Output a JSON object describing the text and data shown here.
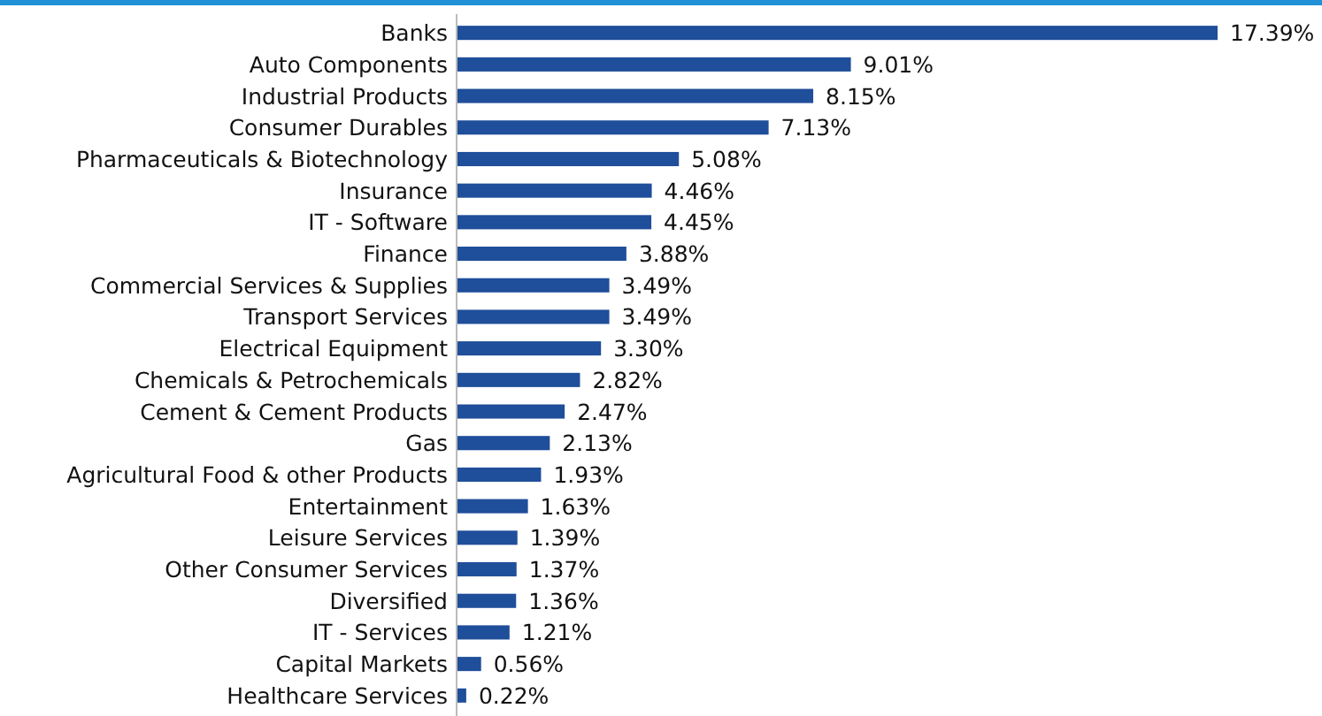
{
  "chart_data": {
    "type": "bar",
    "orientation": "horizontal",
    "color": "#1f4e9a",
    "categories": [
      "Banks",
      "Auto Components",
      "Industrial Products",
      "Consumer Durables",
      "Pharmaceuticals & Biotechnology",
      "Insurance",
      "IT - Software",
      "Finance",
      "Commercial Services & Supplies",
      "Transport Services",
      "Electrical Equipment",
      "Chemicals & Petrochemicals",
      "Cement & Cement Products",
      "Gas",
      "Agricultural Food & other Products",
      "Entertainment",
      "Leisure Services",
      "Other Consumer Services",
      "Diversified",
      "IT - Services",
      "Capital Markets",
      "Healthcare Services"
    ],
    "values": [
      17.39,
      9.01,
      8.15,
      7.13,
      5.08,
      4.46,
      4.45,
      3.88,
      3.49,
      3.49,
      3.3,
      2.82,
      2.47,
      2.13,
      1.93,
      1.63,
      1.39,
      1.37,
      1.36,
      1.21,
      0.56,
      0.22
    ],
    "value_labels": [
      "17.39%",
      "9.01%",
      "8.15%",
      "7.13%",
      "5.08%",
      "4.46%",
      "4.45%",
      "3.88%",
      "3.49%",
      "3.49%",
      "3.30%",
      "2.82%",
      "2.47%",
      "2.13%",
      "1.93%",
      "1.63%",
      "1.39%",
      "1.37%",
      "1.36%",
      "1.21%",
      "0.56%",
      "0.22%"
    ]
  }
}
